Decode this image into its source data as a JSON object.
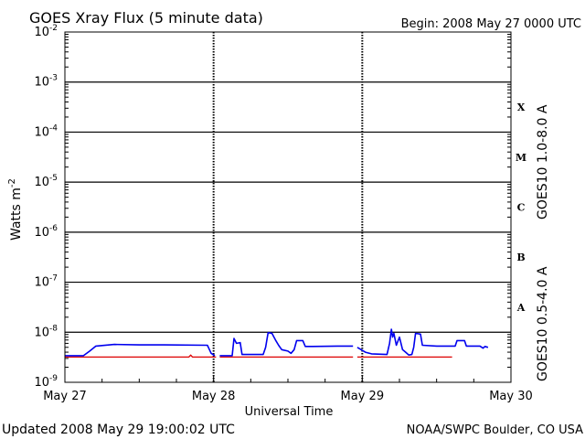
{
  "chart_data": {
    "type": "line",
    "title": "GOES Xray Flux (5 minute data)",
    "begin": "Begin:  2008 May 27 0000 UTC",
    "xlabel": "Universal Time",
    "ylabel": "Watts m",
    "ylabel_sup": "-2",
    "y_scale": "log",
    "ylim": [
      1e-09,
      0.01
    ],
    "xlim": [
      0,
      72
    ],
    "y_ticks": [
      {
        "value": 0.01,
        "base": "10",
        "exp": "-2"
      },
      {
        "value": 0.001,
        "base": "10",
        "exp": "-3"
      },
      {
        "value": 0.0001,
        "base": "10",
        "exp": "-4"
      },
      {
        "value": 1e-05,
        "base": "10",
        "exp": "-5"
      },
      {
        "value": 1e-06,
        "base": "10",
        "exp": "-6"
      },
      {
        "value": 1e-07,
        "base": "10",
        "exp": "-7"
      },
      {
        "value": 1e-08,
        "base": "10",
        "exp": "-8"
      },
      {
        "value": 1e-09,
        "base": "10",
        "exp": "-9"
      }
    ],
    "x_ticks": [
      {
        "value": 0,
        "label": "May 27"
      },
      {
        "value": 24,
        "label": "May 28"
      },
      {
        "value": 48,
        "label": "May 29"
      },
      {
        "value": 72,
        "label": "May 30"
      }
    ],
    "flare_classes": [
      {
        "label": "X",
        "low": 0.0001,
        "high": 0.001
      },
      {
        "label": "M",
        "low": 1e-05,
        "high": 0.0001
      },
      {
        "label": "C",
        "low": 1e-06,
        "high": 1e-05
      },
      {
        "label": "B",
        "low": 1e-07,
        "high": 1e-06
      },
      {
        "label": "A",
        "low": 1e-08,
        "high": 1e-07
      }
    ],
    "series": [
      {
        "name": "GOES10 1.0-8.0 A",
        "color": "#dd0000",
        "segments": [
          [
            [
              0,
              3.2e-09
            ],
            [
              20,
              3.2e-09
            ],
            [
              20.3,
              3.5e-09
            ],
            [
              20.6,
              3.2e-09
            ],
            [
              24.4,
              3.2e-09
            ]
          ],
          [
            [
              25,
              3.2e-09
            ],
            [
              46.5,
              3.2e-09
            ]
          ],
          [
            [
              47.2,
              3.2e-09
            ],
            [
              62.5,
              3.2e-09
            ]
          ]
        ]
      },
      {
        "name": "GOES10 0.5-4.0 A",
        "color": "#0000ee",
        "segments": [
          [
            [
              0,
              3.4e-09
            ],
            [
              3,
              3.4e-09
            ],
            [
              4,
              4.2e-09
            ],
            [
              5,
              5.3e-09
            ],
            [
              8,
              5.7e-09
            ],
            [
              12,
              5.6e-09
            ],
            [
              16,
              5.6e-09
            ],
            [
              23,
              5.5e-09
            ],
            [
              23.6,
              3.8e-09
            ],
            [
              24.2,
              3.4e-09
            ]
          ],
          [
            [
              25,
              3.4e-09
            ],
            [
              27,
              3.4e-09
            ],
            [
              27.3,
              7.5e-09
            ],
            [
              27.7,
              6e-09
            ],
            [
              28.3,
              6.2e-09
            ],
            [
              28.6,
              3.6e-09
            ],
            [
              32,
              3.6e-09
            ],
            [
              32.4,
              5e-09
            ],
            [
              32.8,
              9.8e-09
            ],
            [
              33.4,
              9.6e-09
            ],
            [
              34,
              7e-09
            ],
            [
              34.5,
              5.5e-09
            ],
            [
              35,
              4.5e-09
            ],
            [
              36,
              4.2e-09
            ],
            [
              36.5,
              3.8e-09
            ],
            [
              37,
              4.5e-09
            ],
            [
              37.4,
              6.8e-09
            ],
            [
              38.4,
              6.8e-09
            ],
            [
              38.8,
              5.2e-09
            ],
            [
              40,
              5.2e-09
            ],
            [
              44,
              5.3e-09
            ],
            [
              46.5,
              5.3e-09
            ]
          ],
          [
            [
              47.2,
              5e-09
            ],
            [
              48.5,
              4e-09
            ],
            [
              49.5,
              3.7e-09
            ],
            [
              52,
              3.6e-09
            ],
            [
              52.4,
              6e-09
            ],
            [
              52.7,
              1.15e-08
            ],
            [
              52.9,
              8e-09
            ],
            [
              53.1,
              9.5e-09
            ],
            [
              53.5,
              5.5e-09
            ],
            [
              54,
              8e-09
            ],
            [
              54.5,
              4.5e-09
            ],
            [
              55,
              4e-09
            ],
            [
              55.5,
              3.5e-09
            ],
            [
              56,
              3.6e-09
            ],
            [
              56.3,
              5e-09
            ],
            [
              56.6,
              9.5e-09
            ],
            [
              57.4,
              9.2e-09
            ],
            [
              57.7,
              5.5e-09
            ],
            [
              60,
              5.3e-09
            ],
            [
              63,
              5.3e-09
            ],
            [
              63.3,
              6.8e-09
            ],
            [
              64.5,
              6.8e-09
            ],
            [
              64.8,
              5.3e-09
            ],
            [
              67,
              5.3e-09
            ],
            [
              67.5,
              4.8e-09
            ],
            [
              67.8,
              5.2e-09
            ],
            [
              68.3,
              5e-09
            ]
          ]
        ]
      }
    ]
  },
  "footer": {
    "updated": "Updated 2008 May 29 19:00:02 UTC",
    "credit": "NOAA/SWPC Boulder, CO USA"
  }
}
